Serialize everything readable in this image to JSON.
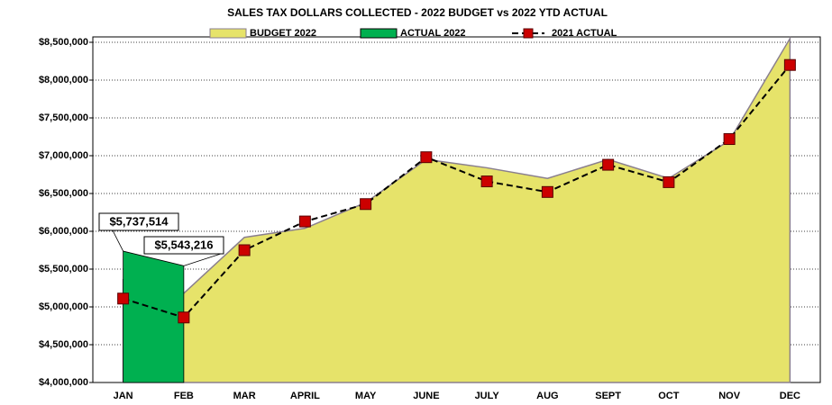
{
  "chart_data": {
    "type": "area",
    "title": "SALES TAX DOLLARS COLLECTED - 2022 BUDGET vs 2022 YTD ACTUAL",
    "categories": [
      "JAN",
      "FEB",
      "MAR",
      "APRIL",
      "MAY",
      "JUNE",
      "JULY",
      "AUG",
      "SEPT",
      "OCT",
      "NOV",
      "DEC"
    ],
    "series": [
      {
        "name": "BUDGET 2022",
        "type": "area",
        "color": "#e6e36a",
        "values": [
          5360000,
          5180000,
          5920000,
          6040000,
          6380000,
          6950000,
          6840000,
          6700000,
          6950000,
          6700000,
          7200000,
          8550000
        ]
      },
      {
        "name": "ACTUAL 2022",
        "type": "area",
        "color": "#00b050",
        "values": [
          5737514,
          5543216,
          null,
          null,
          null,
          null,
          null,
          null,
          null,
          null,
          null,
          null
        ],
        "value_labels": [
          "$5,737,514",
          "$5,543,216",
          null,
          null,
          null,
          null,
          null,
          null,
          null,
          null,
          null,
          null
        ]
      },
      {
        "name": "2021 ACTUAL",
        "type": "line",
        "color": "#cc0000",
        "values": [
          5110000,
          4860000,
          5750000,
          6130000,
          6360000,
          6980000,
          6660000,
          6520000,
          6880000,
          6650000,
          7220000,
          8200000
        ]
      }
    ],
    "ylim": [
      4000000,
      8500000
    ],
    "yticks": [
      {
        "value": 4000000,
        "label": "$4,000,000"
      },
      {
        "value": 4500000,
        "label": "$4,500,000"
      },
      {
        "value": 5000000,
        "label": "$5,000,000"
      },
      {
        "value": 5500000,
        "label": "$5,500,000"
      },
      {
        "value": 6000000,
        "label": "$6,000,000"
      },
      {
        "value": 6500000,
        "label": "$6,500,000"
      },
      {
        "value": 7000000,
        "label": "$7,000,000"
      },
      {
        "value": 7500000,
        "label": "$7,500,000"
      },
      {
        "value": 8000000,
        "label": "$8,000,000"
      },
      {
        "value": 8500000,
        "label": "$8,500,000"
      }
    ],
    "grid": true,
    "legend": "top"
  }
}
